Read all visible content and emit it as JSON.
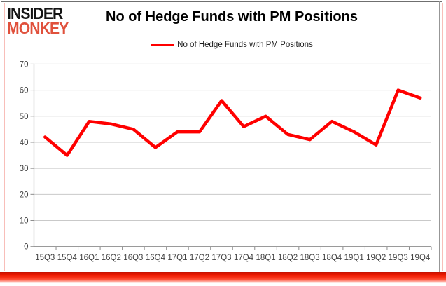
{
  "logo": {
    "line1": "INSIDER",
    "line2": "MONKEY"
  },
  "title": "No of Hedge Funds with PM Positions",
  "legend": {
    "label": "No of Hedge Funds with PM Positions",
    "swatch_color": "#ff0000"
  },
  "chart_data": {
    "type": "line",
    "title": "No of Hedge Funds with PM Positions",
    "categories": [
      "15Q3",
      "15Q4",
      "16Q1",
      "16Q2",
      "16Q3",
      "16Q4",
      "17Q1",
      "17Q2",
      "17Q3",
      "17Q4",
      "18Q1",
      "18Q2",
      "18Q3",
      "18Q4",
      "19Q1",
      "19Q2",
      "19Q3",
      "19Q4"
    ],
    "series": [
      {
        "name": "No of Hedge Funds with PM Positions",
        "color": "#ff0000",
        "values": [
          42,
          35,
          48,
          47,
          45,
          38,
          44,
          44,
          56,
          46,
          50,
          43,
          41,
          48,
          44,
          39,
          60,
          57
        ]
      }
    ],
    "xlabel": "",
    "ylabel": "",
    "ylim": [
      0,
      70
    ],
    "yticks": [
      0,
      10,
      20,
      30,
      40,
      50,
      60,
      70
    ],
    "grid": true,
    "legend_position": "top"
  },
  "colors": {
    "line": "#ff0000",
    "logo_red": "#e0513c",
    "gridline": "#c9c9c9",
    "axis": "#8c8c8c",
    "tick_label": "#444444",
    "bottom_band_red": "#ee1a00"
  }
}
